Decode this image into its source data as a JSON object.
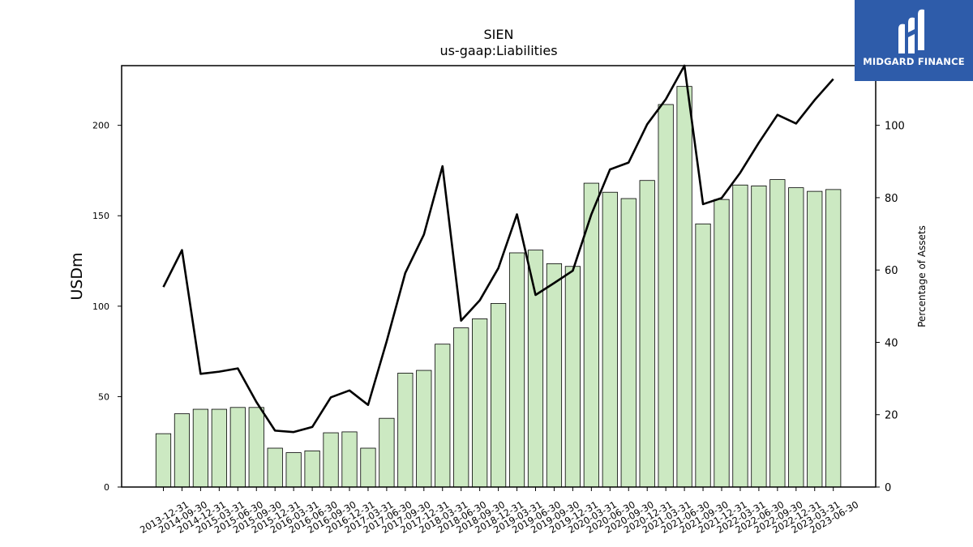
{
  "chart_data": {
    "type": "bar+line",
    "title": "SIEN",
    "subtitle": "us-gaap:Liabilities",
    "ylabel_left": "USDm",
    "ylabel_right": "Percentage of Assets",
    "ylim_left": [
      0,
      233
    ],
    "ylim_right": [
      0,
      116.5
    ],
    "yticks_left": [
      0,
      50,
      100,
      150,
      200
    ],
    "yticks_right": [
      0,
      20,
      40,
      60,
      80,
      100
    ],
    "categories": [
      "2013-12-31",
      "2014-09-30",
      "2014-12-31",
      "2015-03-31",
      "2015-06-30",
      "2015-09-30",
      "2015-12-31",
      "2016-03-31",
      "2016-06-30",
      "2016-09-30",
      "2016-12-31",
      "2017-03-31",
      "2017-06-30",
      "2017-09-30",
      "2017-12-31",
      "2018-03-31",
      "2018-06-30",
      "2018-09-30",
      "2018-12-31",
      "2019-03-31",
      "2019-06-30",
      "2019-09-30",
      "2019-12-31",
      "2020-03-31",
      "2020-06-30",
      "2020-09-30",
      "2020-12-31",
      "2021-03-31",
      "2021-06-30",
      "2021-09-30",
      "2021-12-31",
      "2022-03-31",
      "2022-06-30",
      "2022-09-30",
      "2022-12-31",
      "2023-03-31",
      "2023-06-30"
    ],
    "series": [
      {
        "name": "Liabilities",
        "type": "bar",
        "axis": "left",
        "color": "#cce9c2",
        "values": [
          29.5,
          40.5,
          43.0,
          43.0,
          44.0,
          44.0,
          21.5,
          19.0,
          20.0,
          30.0,
          30.5,
          21.5,
          38.0,
          63.0,
          64.5,
          79.0,
          88.0,
          93.0,
          101.5,
          129.5,
          131.0,
          123.5,
          122.0,
          168.0,
          163.0,
          159.5,
          169.5,
          211.5,
          221.5,
          145.5,
          159.0,
          167.0,
          166.5,
          170.0,
          165.5,
          163.5,
          164.5
        ]
      },
      {
        "name": "Percentage of Assets",
        "type": "line",
        "axis": "right",
        "color": "#000000",
        "values": [
          55.3,
          65.5,
          31.3,
          31.9,
          32.8,
          23.5,
          15.6,
          15.2,
          16.6,
          24.8,
          26.7,
          22.7,
          40.3,
          59.2,
          69.8,
          88.7,
          46.0,
          51.6,
          60.5,
          75.4,
          53.1,
          56.4,
          59.8,
          75.4,
          87.8,
          89.7,
          100.3,
          107.2,
          116.5,
          78.2,
          79.9,
          86.9,
          95.2,
          102.9,
          100.5,
          107.0,
          112.8
        ]
      }
    ],
    "grid": false,
    "legend": "none"
  },
  "logo": {
    "text": "MIDGARD FINANCE",
    "color": "#2e5caa"
  }
}
